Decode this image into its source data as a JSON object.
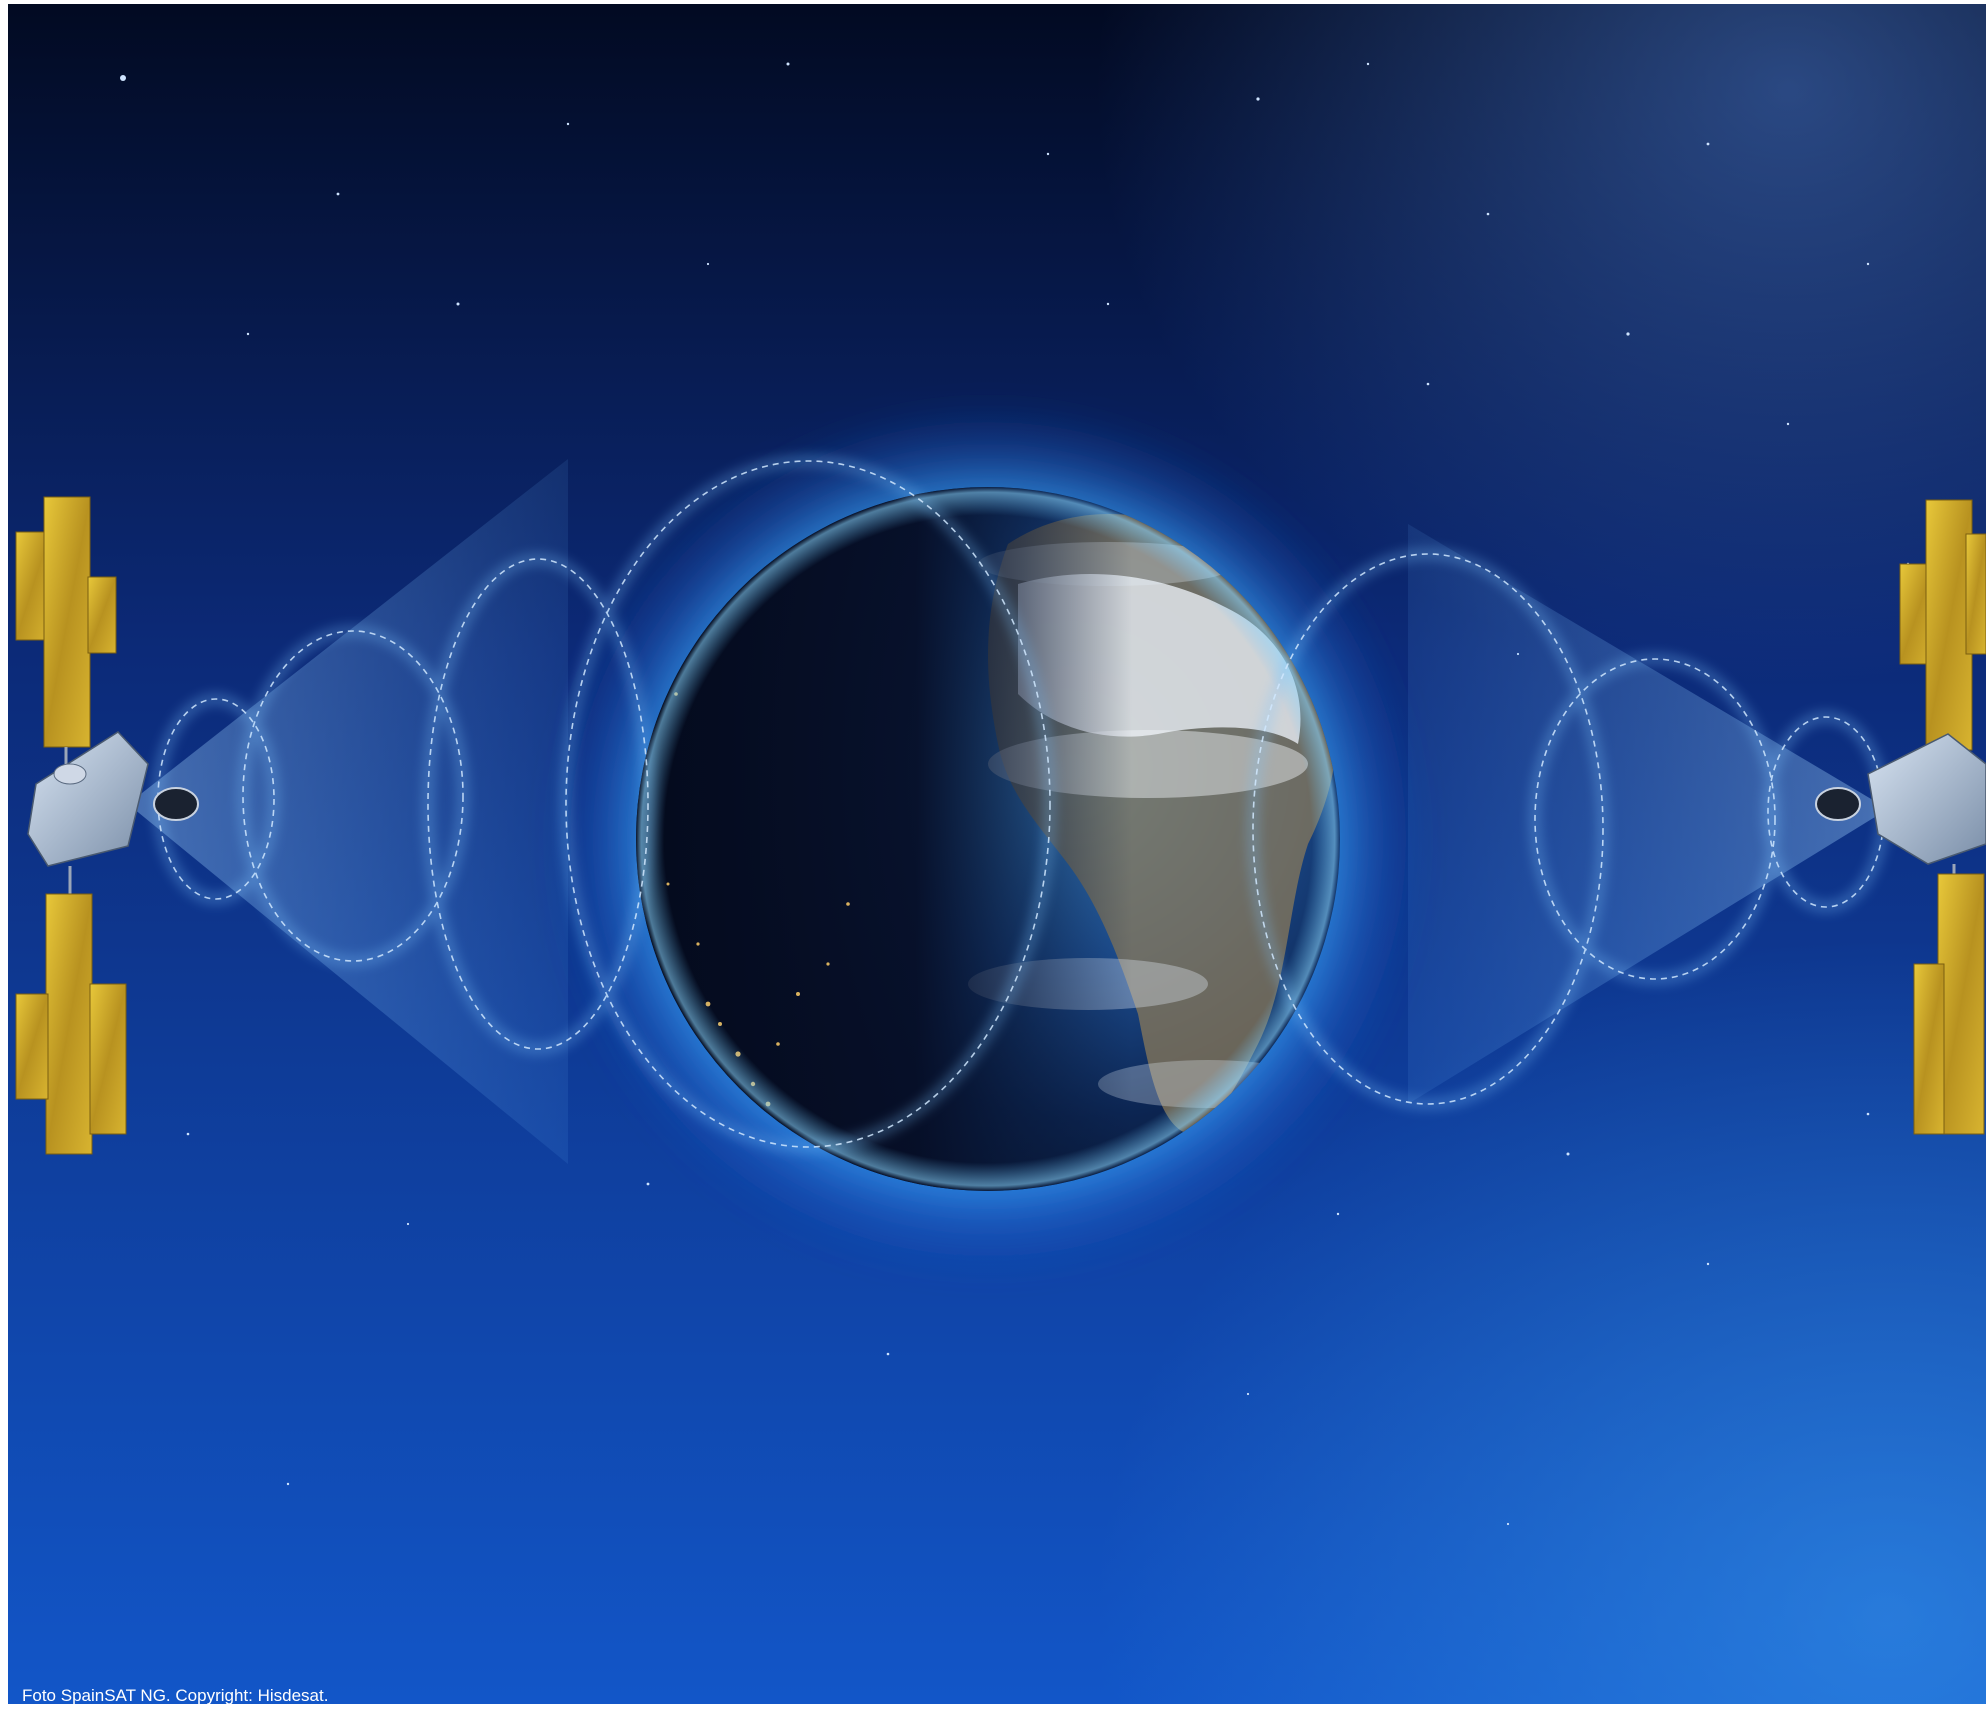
{
  "caption": "Foto SpainSAT NG. Copyright: Hisdesat.",
  "colors": {
    "space_dark": "#020a22",
    "space_mid": "#0c2a78",
    "space_bright": "#1256c8",
    "atmosphere_glow": "#3aa8ff",
    "solar_panel": "#c9a81e",
    "beam_outline": "#e8f2ff",
    "caption_text": "#ffffff"
  },
  "icons": [
    "left-satellite-icon",
    "right-satellite-icon",
    "earth-globe",
    "signal-beam"
  ]
}
